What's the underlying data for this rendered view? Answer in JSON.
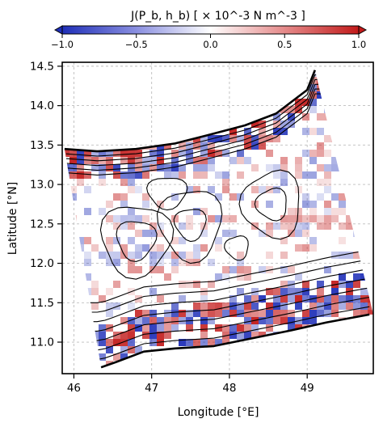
{
  "chart_data": {
    "type": "heatmap",
    "colorbar": {
      "label": "J(P_b, h_b) [ × 10^-3 N m^-3 ]",
      "range": [
        -1.0,
        1.0
      ],
      "ticks": [
        -1.0,
        -0.5,
        0.0,
        0.5,
        1.0
      ],
      "tick_labels": [
        "−1.0",
        "−0.5",
        "0.0",
        "0.5",
        "1.0"
      ],
      "colormap": "seismic",
      "colors": {
        "negative": "#1f2fb8",
        "neutral": "#ffffff",
        "positive": "#c21a1a"
      },
      "extend": "both"
    },
    "xaxis": {
      "label": "Longitude [°E]",
      "range": [
        45.85,
        49.85
      ],
      "ticks": [
        46,
        47,
        48,
        49
      ],
      "tick_labels": [
        "46",
        "47",
        "48",
        "49"
      ]
    },
    "yaxis": {
      "label": "Latitude [°N]",
      "range": [
        10.6,
        14.55
      ],
      "ticks": [
        11.0,
        11.5,
        12.0,
        12.5,
        13.0,
        13.5,
        14.0,
        14.5
      ],
      "tick_labels": [
        "11.0",
        "11.5",
        "12.0",
        "12.5",
        "13.0",
        "13.5",
        "14.0",
        "14.5"
      ]
    },
    "grid": true,
    "domain_boundary": {
      "north": [
        [
          45.88,
          13.45
        ],
        [
          46.3,
          13.42
        ],
        [
          46.8,
          13.45
        ],
        [
          47.3,
          13.52
        ],
        [
          47.7,
          13.62
        ],
        [
          48.2,
          13.75
        ],
        [
          48.6,
          13.9
        ],
        [
          49.0,
          14.2
        ],
        [
          49.1,
          14.45
        ]
      ],
      "south": [
        [
          46.35,
          10.68
        ],
        [
          46.55,
          10.75
        ],
        [
          46.9,
          10.88
        ],
        [
          47.3,
          10.92
        ],
        [
          47.8,
          10.95
        ],
        [
          48.3,
          11.05
        ],
        [
          48.8,
          11.15
        ],
        [
          49.25,
          11.25
        ],
        [
          49.8,
          11.35
        ]
      ]
    },
    "contours": {
      "color": "#000000",
      "north_slope_levels": [
        [
          46.0,
          13.35
        ],
        [
          46.0,
          13.28
        ],
        [
          46.0,
          13.2
        ],
        [
          46.0,
          13.12
        ],
        [
          46.0,
          13.05
        ]
      ],
      "south_slope_levels": [
        [
          46.4,
          10.85
        ],
        [
          46.4,
          11.0
        ],
        [
          46.4,
          11.15
        ],
        [
          46.4,
          11.3
        ],
        [
          46.4,
          11.45
        ],
        [
          46.4,
          11.6
        ],
        [
          46.4,
          11.72
        ]
      ],
      "interior_rings": [
        {
          "center": [
            46.8,
            12.3
          ],
          "rx": 0.25,
          "ry": 0.25
        },
        {
          "center": [
            46.8,
            12.3
          ],
          "rx": 0.45,
          "ry": 0.45
        },
        {
          "center": [
            47.5,
            12.5
          ],
          "rx": 0.2,
          "ry": 0.2
        },
        {
          "center": [
            47.5,
            12.5
          ],
          "rx": 0.4,
          "ry": 0.45
        },
        {
          "center": [
            48.55,
            12.75
          ],
          "rx": 0.2,
          "ry": 0.2
        },
        {
          "center": [
            48.55,
            12.75
          ],
          "rx": 0.38,
          "ry": 0.42
        },
        {
          "center": [
            48.1,
            12.2
          ],
          "rx": 0.15,
          "ry": 0.15
        },
        {
          "center": [
            47.2,
            12.9
          ],
          "rx": 0.25,
          "ry": 0.2
        }
      ]
    }
  }
}
